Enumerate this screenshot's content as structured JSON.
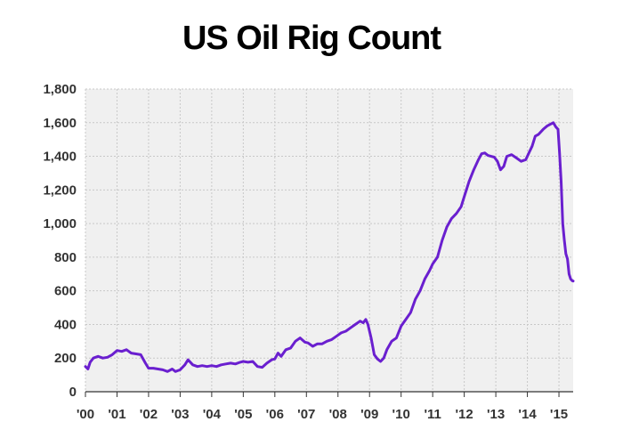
{
  "chart_data": {
    "type": "line",
    "title": "US Oil Rig Count",
    "xlabel": "",
    "ylabel": "",
    "ylim": [
      0,
      1800
    ],
    "xlim": [
      2000.0,
      2015.45
    ],
    "grid": true,
    "y_ticks": [
      0,
      200,
      400,
      600,
      800,
      1000,
      1200,
      1400,
      1600,
      1800
    ],
    "y_tick_labels": [
      "0",
      "200",
      "400",
      "600",
      "800",
      "1,000",
      "1,200",
      "1,400",
      "1,600",
      "1,800"
    ],
    "x_ticks": [
      2000,
      2001,
      2002,
      2003,
      2004,
      2005,
      2006,
      2007,
      2008,
      2009,
      2010,
      2011,
      2012,
      2013,
      2014,
      2015
    ],
    "x_tick_labels": [
      "'00",
      "'01",
      "'02",
      "'03",
      "'04",
      "'05",
      "'06",
      "'07",
      "'08",
      "'09",
      "'10",
      "'11",
      "'12",
      "'13",
      "'14",
      "'15"
    ],
    "series": [
      {
        "color": "#6a1fcf",
        "x": [
          2000.0,
          2000.08,
          2000.15,
          2000.25,
          2000.4,
          2000.55,
          2000.7,
          2000.85,
          2001.0,
          2001.15,
          2001.3,
          2001.45,
          2001.6,
          2001.75,
          2001.9,
          2002.0,
          2002.15,
          2002.3,
          2002.45,
          2002.6,
          2002.75,
          2002.85,
          2003.0,
          2003.15,
          2003.25,
          2003.4,
          2003.55,
          2003.7,
          2003.85,
          2004.0,
          2004.15,
          2004.3,
          2004.45,
          2004.6,
          2004.75,
          2004.9,
          2005.0,
          2005.15,
          2005.3,
          2005.45,
          2005.6,
          2005.75,
          2005.9,
          2006.0,
          2006.1,
          2006.2,
          2006.35,
          2006.5,
          2006.65,
          2006.8,
          2006.95,
          2007.05,
          2007.2,
          2007.35,
          2007.5,
          2007.65,
          2007.8,
          2007.95,
          2008.1,
          2008.25,
          2008.4,
          2008.55,
          2008.7,
          2008.8,
          2008.88,
          2008.95,
          2009.05,
          2009.15,
          2009.25,
          2009.35,
          2009.45,
          2009.55,
          2009.7,
          2009.85,
          2010.0,
          2010.15,
          2010.3,
          2010.45,
          2010.6,
          2010.75,
          2010.9,
          2011.0,
          2011.15,
          2011.3,
          2011.45,
          2011.6,
          2011.75,
          2011.9,
          2012.0,
          2012.15,
          2012.3,
          2012.45,
          2012.55,
          2012.65,
          2012.75,
          2012.85,
          2012.95,
          2013.05,
          2013.15,
          2013.25,
          2013.35,
          2013.5,
          2013.65,
          2013.8,
          2013.95,
          2014.05,
          2014.15,
          2014.25,
          2014.35,
          2014.5,
          2014.62,
          2014.72,
          2014.82,
          2014.9,
          2014.97,
          2015.02,
          2015.07,
          2015.12,
          2015.17,
          2015.22,
          2015.27,
          2015.32,
          2015.37,
          2015.42,
          2015.45
        ],
        "y": [
          150,
          135,
          175,
          200,
          210,
          200,
          205,
          220,
          245,
          240,
          250,
          230,
          225,
          220,
          170,
          140,
          140,
          135,
          130,
          120,
          135,
          120,
          130,
          160,
          190,
          160,
          150,
          155,
          150,
          155,
          150,
          160,
          165,
          170,
          165,
          175,
          180,
          175,
          180,
          150,
          145,
          170,
          190,
          195,
          230,
          210,
          250,
          260,
          300,
          320,
          295,
          290,
          270,
          285,
          285,
          300,
          310,
          330,
          350,
          360,
          380,
          400,
          420,
          410,
          430,
          400,
          320,
          220,
          195,
          180,
          200,
          250,
          300,
          320,
          390,
          430,
          470,
          550,
          600,
          670,
          720,
          760,
          800,
          900,
          980,
          1030,
          1060,
          1100,
          1160,
          1250,
          1320,
          1380,
          1415,
          1420,
          1405,
          1400,
          1395,
          1370,
          1320,
          1340,
          1400,
          1410,
          1390,
          1370,
          1380,
          1420,
          1460,
          1520,
          1530,
          1560,
          1580,
          1590,
          1600,
          1575,
          1560,
          1420,
          1250,
          1000,
          900,
          820,
          790,
          700,
          670,
          660,
          658
        ]
      }
    ]
  }
}
